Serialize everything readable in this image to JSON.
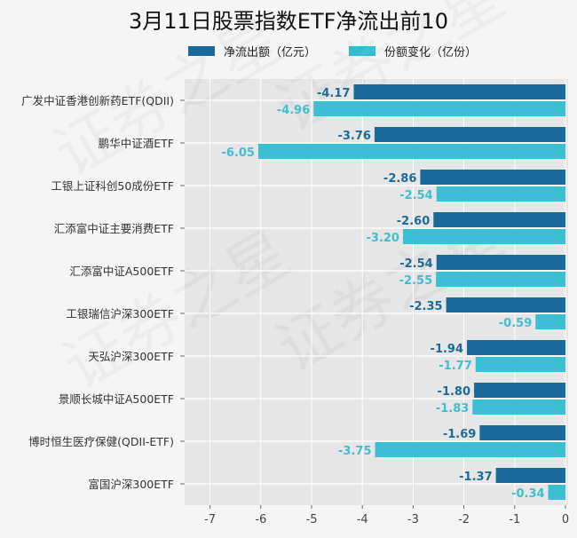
{
  "chart_data": {
    "type": "bar",
    "orientation": "horizontal",
    "title": "3月11日股票指数ETF净流出前10",
    "categories": [
      "广发中证香港创新药ETF(QDII)",
      "鹏华中证酒ETF",
      "工银上证科创50成份ETF",
      "汇添富中证主要消费ETF",
      "汇添富中证A500ETF",
      "工银瑞信沪深300ETF",
      "天弘沪深300ETF",
      "景顺长城中证A500ETF",
      "博时恒生医疗保健(QDII-ETF)",
      "富国沪深300ETF"
    ],
    "series": [
      {
        "name": "净流出额（亿元）",
        "color": "#1a6b9c",
        "values": [
          -4.17,
          -3.76,
          -2.86,
          -2.6,
          -2.54,
          -2.35,
          -1.94,
          -1.8,
          -1.69,
          -1.37
        ],
        "labels": [
          "-4.17",
          "-3.76",
          "-2.86",
          "-2.60",
          "-2.54",
          "-2.35",
          "-1.94",
          "-1.80",
          "-1.69",
          "-1.37"
        ]
      },
      {
        "name": "份额变化（亿份）",
        "color": "#3bbfd4",
        "values": [
          -4.96,
          -6.05,
          -2.54,
          -3.2,
          -2.55,
          -0.59,
          -1.77,
          -1.83,
          -3.75,
          -0.34
        ],
        "labels": [
          "-4.96",
          "-6.05",
          "-2.54",
          "-3.20",
          "-2.55",
          "-0.59",
          "-1.77",
          "-1.83",
          "-3.75",
          "-0.34"
        ]
      }
    ],
    "xlim": [
      -7.5,
      0
    ],
    "xticks": [
      "-7",
      "-6",
      "-5",
      "-4",
      "-3",
      "-2",
      "-1",
      "0"
    ],
    "xtick_values": [
      -7,
      -6,
      -5,
      -4,
      -3,
      -2,
      -1,
      0
    ],
    "grid": true,
    "legend_position": "top",
    "plot_background": "#e6e6e6",
    "watermark": "证券之星"
  }
}
